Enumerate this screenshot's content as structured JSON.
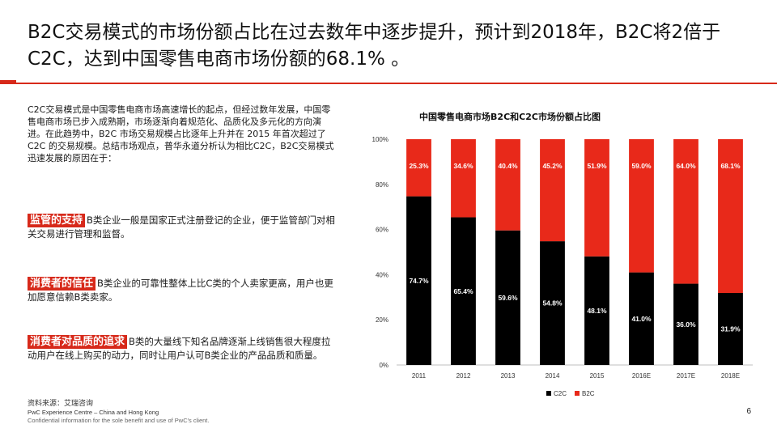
{
  "header": {
    "title": "B2C交易模式的市场份额占比在过去数年中逐步提升，预计到2018年，B2C将2倍于C2C，达到中国零售电商市场份额的68.1% 。"
  },
  "body": {
    "intro": "C2C交易模式是中国零售电商市场高速增长的起点，但经过数年发展，中国零售电商市场已步入成熟期，市场逐渐向着规范化、品质化及多元化的方向演进。在此趋势中，B2C 市场交易规模占比逐年上升并在 2015 年首次超过了 C2C 的交易规模。总结市场观点，普华永道分析认为相比C2C，B2C交易模式迅速发展的原因在于：",
    "points": [
      {
        "tag": "监管的支持",
        "text": "B类企业一般是国家正式注册登记的企业，便于监管部门对相关交易进行管理和监督。"
      },
      {
        "tag": "消费者的信任",
        "text": "B类企业的可靠性整体上比C类的个人卖家更高，用户也更加愿意信赖B类卖家。"
      },
      {
        "tag": "消费者对品质的追求",
        "text": "B类的大量线下知名品牌逐渐上线销售很大程度拉动用户在线上购买的动力，同时让用户认可B类企业的产品品质和质量。"
      }
    ]
  },
  "footer": {
    "source": "资料来源：艾瑞咨询",
    "line1": "PwC Experience Centre – China and Hong Kong",
    "line2": "Confidential information for the sole benefit and use of PwC's client.",
    "page": "6"
  },
  "colors": {
    "accent": "#d7291a",
    "c2c": "#000000",
    "b2c": "#e8291a"
  },
  "chart_data": {
    "type": "bar",
    "stacked": true,
    "percent": true,
    "title": "中国零售电商市场B2C和C2C市场份额占比图",
    "categories": [
      "2011",
      "2012",
      "2013",
      "2014",
      "2015",
      "2016E",
      "2017E",
      "2018E"
    ],
    "series": [
      {
        "name": "C2C",
        "values": [
          74.7,
          65.4,
          59.6,
          54.8,
          48.1,
          41.0,
          36.0,
          31.9
        ],
        "labels": [
          "74.7%",
          "65.4%",
          "59.6%",
          "54.8%",
          "48.1%",
          "41.0%",
          "36.0%",
          "31.9%"
        ]
      },
      {
        "name": "B2C",
        "values": [
          25.3,
          34.6,
          40.4,
          45.2,
          51.9,
          59.0,
          64.0,
          68.1
        ],
        "labels": [
          "25.3%",
          "34.6%",
          "40.4%",
          "45.2%",
          "51.9%",
          "59.0%",
          "64.0%",
          "68.1%"
        ]
      }
    ],
    "ylim": [
      0,
      100
    ],
    "yticks": [
      "0%",
      "20%",
      "40%",
      "60%",
      "80%",
      "100%"
    ],
    "legend": "bottom"
  }
}
